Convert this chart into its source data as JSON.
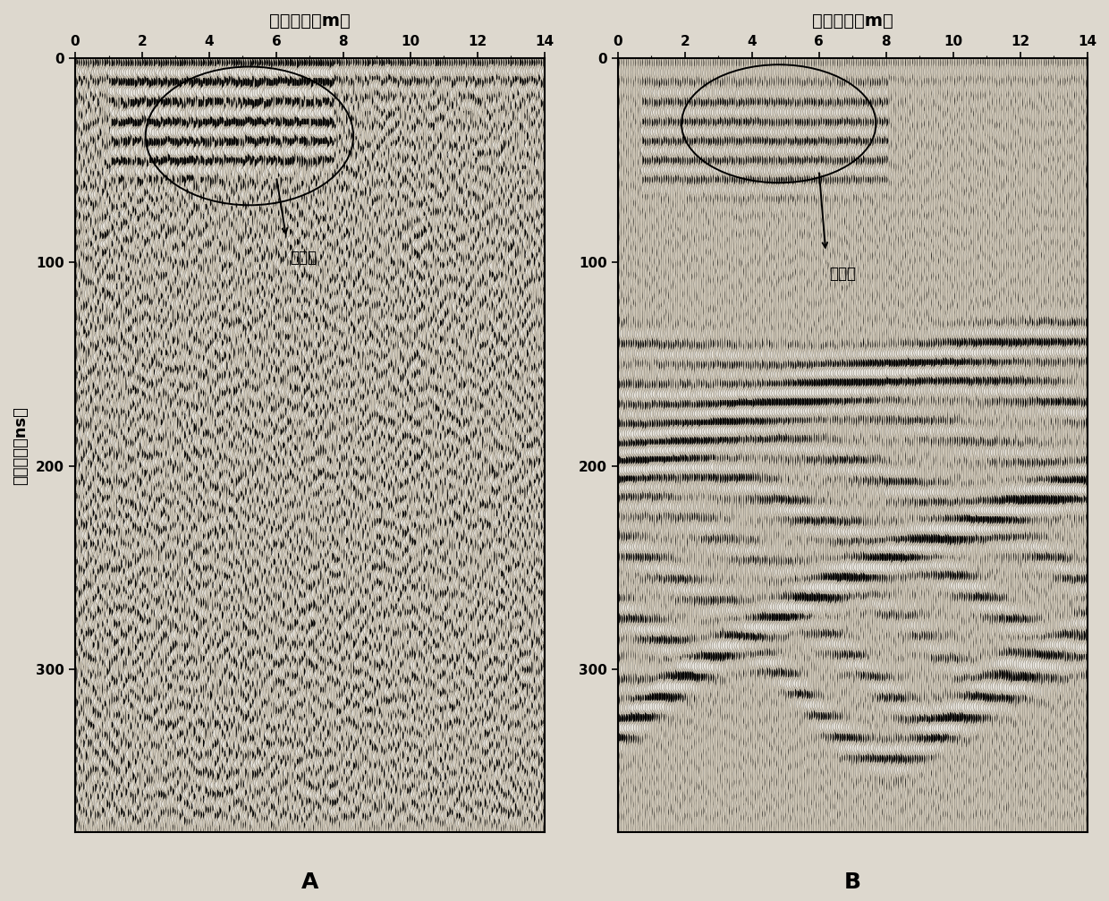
{
  "title_cn": "测线位置（m）",
  "ylabel_cn": "双程走时（ns）",
  "label_before": "灌水前",
  "label_after": "灌水后",
  "panel_A": "A",
  "panel_B": "B",
  "x_ticks": [
    0,
    2,
    4,
    6,
    8,
    10,
    12,
    14
  ],
  "x_range": [
    0,
    14
  ],
  "y_ticks": [
    0,
    100,
    200,
    300
  ],
  "y_range_max": 380,
  "n_traces": 200,
  "n_samples": 400,
  "figure_width": 12.4,
  "figure_height": 10.07,
  "dpi": 100,
  "bg_color": "#d8d0c0",
  "panel_bg": "#ccc4b4"
}
